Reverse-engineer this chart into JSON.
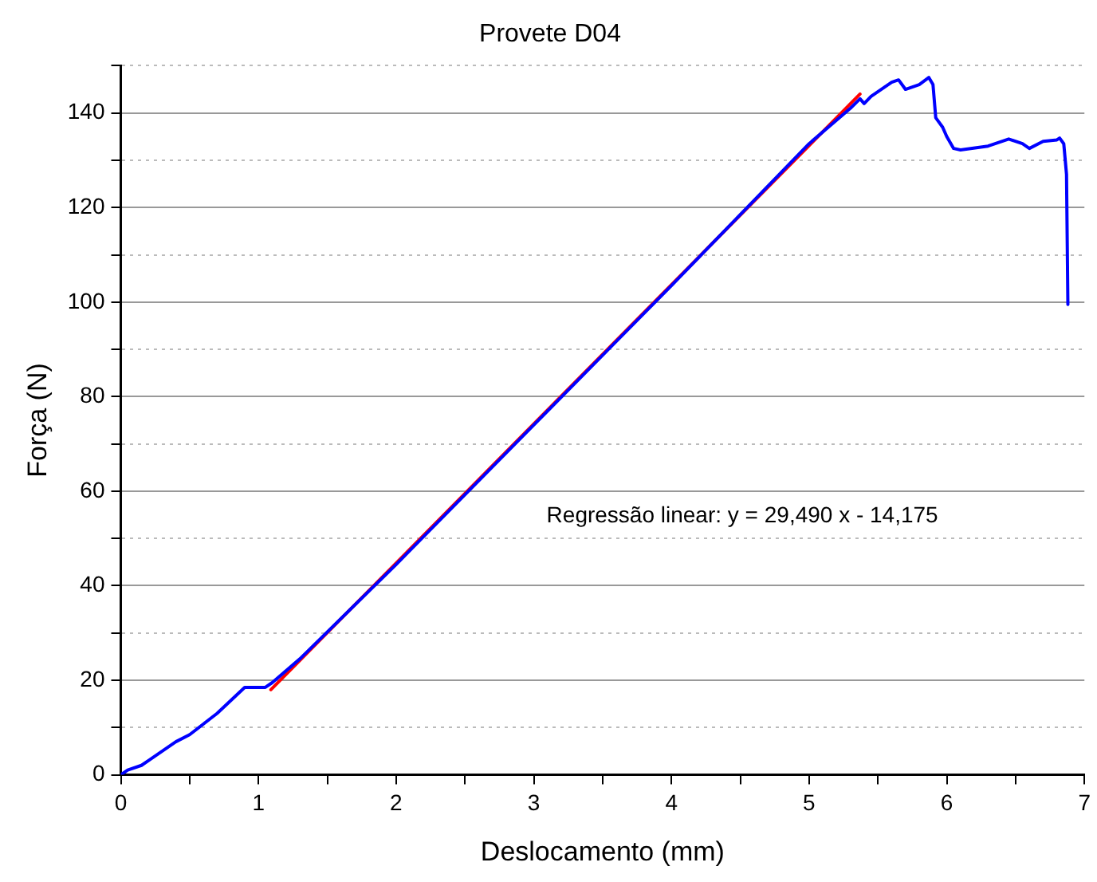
{
  "chart_data": {
    "type": "line",
    "title": "Provete D04",
    "xlabel": "Deslocamento (mm)",
    "ylabel": "Força (N)",
    "xlim": [
      0,
      7
    ],
    "xticks": [
      0,
      {
        "value": 0.5,
        "label": null
      },
      1,
      {
        "value": 1.5,
        "label": null
      },
      2,
      {
        "value": 2.5,
        "label": null
      },
      3,
      {
        "value": 3.5,
        "label": null
      },
      4,
      {
        "value": 4.5,
        "label": null
      },
      5,
      {
        "value": 5.5,
        "label": null
      },
      6,
      {
        "value": 6.5,
        "label": null
      },
      7
    ],
    "ylim": [
      0,
      150
    ],
    "yticks": [
      0,
      {
        "value": 10,
        "label": null
      },
      20,
      {
        "value": 30,
        "label": null
      },
      40,
      {
        "value": 50,
        "label": null
      },
      60,
      {
        "value": 70,
        "label": null
      },
      80,
      {
        "value": 90,
        "label": null
      },
      100,
      {
        "value": 110,
        "label": null
      },
      120,
      {
        "value": 130,
        "label": null
      },
      140,
      {
        "value": 150,
        "label": null
      }
    ],
    "grid": "y",
    "marker": "none",
    "line_style": "solid",
    "series": [
      {
        "color": "#0000ff",
        "x": [
          0,
          0.05,
          0.15,
          0.2,
          0.4,
          0.5,
          0.7,
          0.9,
          1.0,
          1.05,
          1.1,
          1.3,
          2,
          3,
          4,
          5,
          5.3,
          5.37,
          5.4,
          5.45,
          5.6,
          5.65,
          5.7,
          5.8,
          5.87,
          5.9,
          5.92,
          5.97,
          6.0,
          6.05,
          6.1,
          6.3,
          6.45,
          6.55,
          6.6,
          6.7,
          6.8,
          6.82,
          6.85,
          6.87,
          6.88
        ],
        "values": [
          0,
          1,
          2,
          3,
          7,
          8.5,
          13,
          18.5,
          18.5,
          18.5,
          19.5,
          24.5,
          44.5,
          74,
          103.5,
          133.5,
          141,
          143,
          142,
          143.5,
          146.5,
          147,
          145,
          146,
          147.5,
          146,
          139,
          137,
          135,
          132.5,
          132.2,
          133,
          134.5,
          133.5,
          132.5,
          134,
          134.3,
          134.7,
          133.5,
          127,
          99.5
        ]
      },
      {
        "color": "#ff0000",
        "x": [
          1.09,
          5.37
        ],
        "values": [
          18,
          144
        ]
      }
    ],
    "annotations": [
      "Regressão linear: y = 29,490 x - 14,175"
    ]
  }
}
